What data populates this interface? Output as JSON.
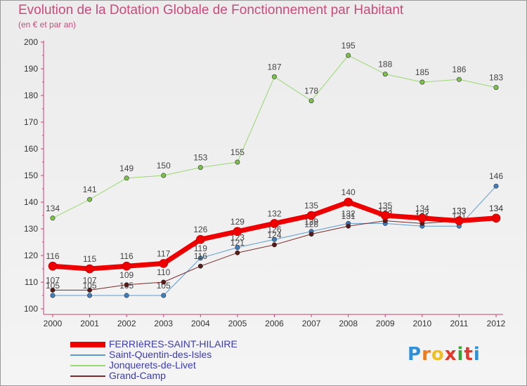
{
  "title": "Evolution de la Dotation Globale de Fonctionnement par Habitant",
  "subtitle": "(en € et par an)",
  "logo": {
    "text": "Proxiti",
    "colors": [
      "#2f8fd8",
      "#f07a1e",
      "#f0c020",
      "#e23a2a",
      "#3aa63a",
      "#e23a2a",
      "#2f8fd8"
    ]
  },
  "chart_data": {
    "type": "line",
    "title": "Evolution de la Dotation Globale de Fonctionnement par Habitant",
    "subtitle": "(en € et par an)",
    "x": [
      "2000",
      "2001",
      "2002",
      "2003",
      "2004",
      "2005",
      "2006",
      "2007",
      "2008",
      "2009",
      "2010",
      "2011",
      "2012"
    ],
    "ylim": [
      100,
      200
    ],
    "yticks": [
      100,
      110,
      120,
      130,
      140,
      150,
      160,
      170,
      180,
      190,
      200
    ],
    "grid": false,
    "legend_position": "bottom-left",
    "series": [
      {
        "name": "Saint-Quentin-des-Isles",
        "color": "#5b9bd0",
        "marker": "#3f7fbf",
        "width": 1,
        "values": [
          105,
          105,
          105,
          105,
          119,
          123,
          126,
          129,
          132,
          132,
          131,
          131,
          146
        ],
        "labels": [
          "105",
          "105",
          "105",
          "105",
          "119",
          "123",
          "126",
          "129",
          "132",
          "132",
          "131",
          "131",
          "146"
        ]
      },
      {
        "name": "Grand-Camp",
        "color": "#7a2a2a",
        "marker": "#5a1a1a",
        "width": 1,
        "values": [
          107,
          107,
          109,
          110,
          116,
          121,
          124,
          128,
          131,
          133,
          132,
          133,
          134
        ],
        "labels": [
          "107",
          "107",
          "109",
          "110",
          "116",
          "121",
          "124",
          "128",
          "131",
          "133",
          "132",
          "133",
          "134"
        ]
      },
      {
        "name": "Jonquerets-de-Livet",
        "color": "#9ad870",
        "marker": "#7cc24a",
        "width": 1,
        "values": [
          134,
          141,
          149,
          150,
          153,
          155,
          187,
          178,
          195,
          188,
          185,
          186,
          183
        ],
        "labels": [
          "134",
          "141",
          "149",
          "150",
          "153",
          "155",
          "187",
          "178",
          "195",
          "188",
          "185",
          "186",
          "183"
        ]
      },
      {
        "name": "FERRIèRES-SAINT-HILAIRE",
        "color": "#ee0000",
        "marker": "#ee0000",
        "width": 7,
        "values": [
          116,
          115,
          116,
          117,
          126,
          129,
          132,
          135,
          140,
          135,
          134,
          133,
          134
        ],
        "labels": [
          "116",
          "115",
          "116",
          "117",
          "126",
          "129",
          "132",
          "135",
          "140",
          "135",
          "134",
          "133",
          "134"
        ]
      }
    ],
    "legend_order": [
      "FERRIèRES-SAINT-HILAIRE",
      "Saint-Quentin-des-Isles",
      "Jonquerets-de-Livet",
      "Grand-Camp"
    ]
  }
}
